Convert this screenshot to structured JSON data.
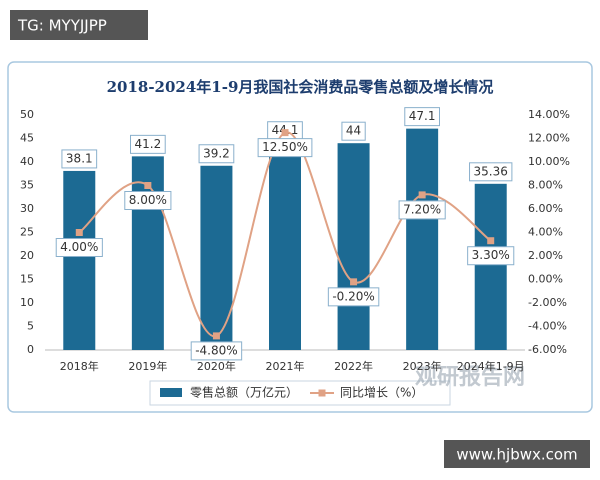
{
  "chart_data": {
    "type": "bar",
    "title": "2018-2024年1-9月我国社会消费品零售总额及增长情况",
    "categories": [
      "2018年",
      "2019年",
      "2020年",
      "2021年",
      "2022年",
      "2023年",
      "2024年1-9月"
    ],
    "series": [
      {
        "name": "零售总额（万亿元）",
        "type": "bar",
        "color": "#1c6a93",
        "values": [
          38.1,
          41.2,
          39.2,
          44.1,
          44,
          47.1,
          35.36
        ]
      },
      {
        "name": "同比增长（%）",
        "type": "line",
        "axis": "y2",
        "color": "#e0a285",
        "values": [
          4,
          8,
          -4.8,
          12.5,
          -0.2,
          7.2,
          3.3
        ],
        "value_labels": [
          "4.00%",
          "8.00%",
          "-4.80%",
          "12.50%",
          "-0.20%",
          "7.20%",
          "3.30%"
        ]
      }
    ],
    "ylim": [
      0,
      50
    ],
    "yticks": [
      0,
      5,
      10,
      15,
      20,
      25,
      30,
      35,
      40,
      45,
      50
    ],
    "y2lim": [
      -6,
      14
    ],
    "y2ticks": [
      {
        "value": -6,
        "label": "-6.00%"
      },
      {
        "value": -4,
        "label": "-4.00%"
      },
      {
        "value": -2,
        "label": "-2.00%"
      },
      {
        "value": 0,
        "label": "0.00%"
      },
      {
        "value": 2,
        "label": "2.00%"
      },
      {
        "value": 4,
        "label": "4.00%"
      },
      {
        "value": 6,
        "label": "6.00%"
      },
      {
        "value": 8,
        "label": "8.00%"
      },
      {
        "value": 10,
        "label": "10.00%"
      },
      {
        "value": 12,
        "label": "12.00%"
      },
      {
        "value": 14,
        "label": "14.00%"
      }
    ],
    "grid": false
  },
  "watermarks": {
    "top": "TG: MYYJJPP",
    "logo": "观研报告网",
    "bottom": "www.hjbwx.com"
  }
}
